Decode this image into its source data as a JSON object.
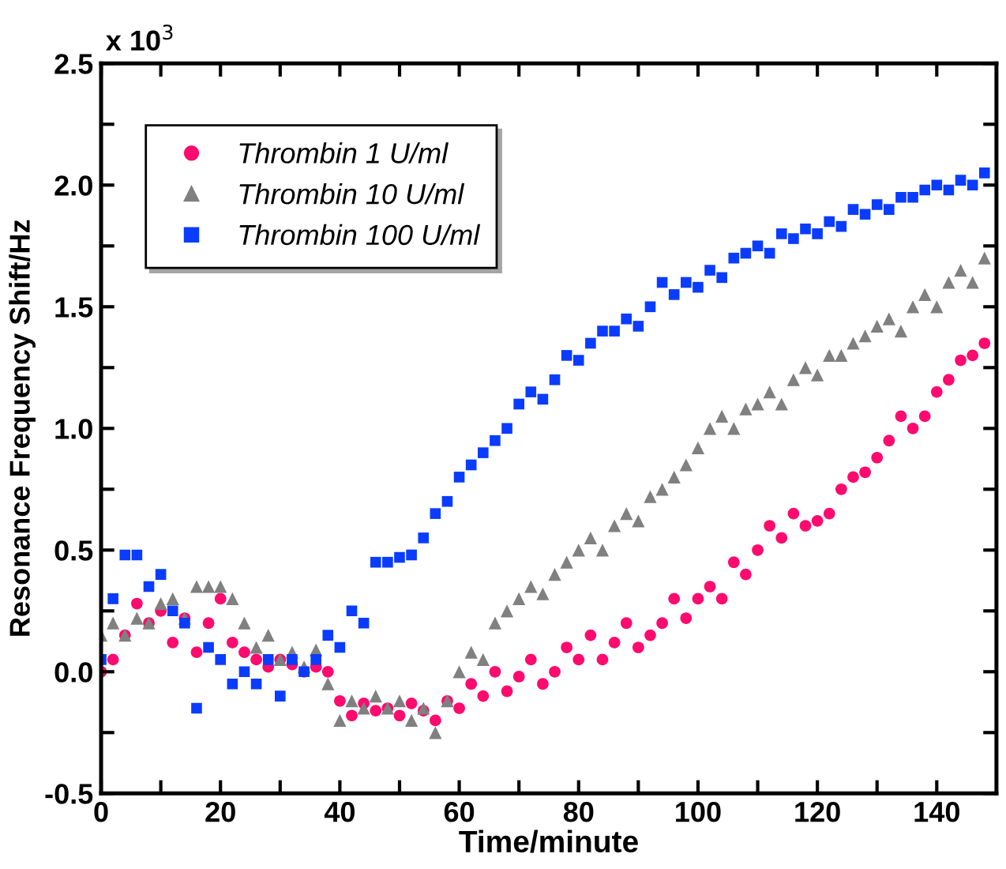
{
  "chart_data": {
    "type": "scatter",
    "xlabel": "Time/minute",
    "ylabel": "Resonance Frequency Shift/Hz",
    "annotations": [
      "x 10$^{3}$"
    ],
    "xlim": [
      0,
      150
    ],
    "ylim": [
      -0.5,
      2.5
    ],
    "xticks": [
      0,
      {
        "value": 10,
        "label": null
      },
      20,
      {
        "value": 30,
        "label": null
      },
      40,
      {
        "value": 50,
        "label": null
      },
      60,
      {
        "value": 70,
        "label": null
      },
      80,
      {
        "value": 90,
        "label": null
      },
      100,
      {
        "value": 110,
        "label": null
      },
      120,
      {
        "value": 130,
        "label": null
      },
      140
    ],
    "yticks": [
      -0.5,
      {
        "value": -0.25,
        "label": null
      },
      {
        "value": 0,
        "label": "0.0"
      },
      {
        "value": 0.25,
        "label": null
      },
      0.5,
      {
        "value": 0.75,
        "label": null
      },
      {
        "value": 1,
        "label": "1.0"
      },
      {
        "value": 1.25,
        "label": null
      },
      1.5,
      {
        "value": 1.75,
        "label": null
      },
      {
        "value": 2,
        "label": "2.0"
      },
      {
        "value": 2.25,
        "label": null
      },
      2.5
    ],
    "grid": false,
    "legend": "top left",
    "x": [
      0,
      2,
      4,
      6,
      8,
      10,
      12,
      14,
      16,
      18,
      20,
      22,
      24,
      26,
      28,
      30,
      32,
      34,
      36,
      38,
      40,
      42,
      44,
      46,
      48,
      50,
      52,
      54,
      56,
      58,
      60,
      62,
      64,
      66,
      68,
      70,
      72,
      74,
      76,
      78,
      80,
      82,
      84,
      86,
      88,
      90,
      92,
      94,
      96,
      98,
      100,
      102,
      104,
      106,
      108,
      110,
      112,
      114,
      116,
      118,
      120,
      122,
      124,
      126,
      128,
      130,
      132,
      134,
      136,
      138,
      140,
      142,
      144,
      146,
      148
    ],
    "series": [
      {
        "name": "Thrombin 1 U/ml",
        "color": "#ff0a6e",
        "marker": "circle",
        "values": [
          0.0,
          0.05,
          0.15,
          0.28,
          0.2,
          0.25,
          0.12,
          0.22,
          0.08,
          0.2,
          0.3,
          0.12,
          0.08,
          0.05,
          0.02,
          0.05,
          0.03,
          0.0,
          0.02,
          0.0,
          -0.12,
          -0.18,
          -0.13,
          -0.16,
          -0.15,
          -0.18,
          -0.13,
          -0.16,
          -0.2,
          -0.12,
          -0.15,
          -0.05,
          -0.1,
          0.0,
          -0.08,
          -0.02,
          0.05,
          -0.05,
          0.0,
          0.1,
          0.05,
          0.15,
          0.05,
          0.12,
          0.2,
          0.1,
          0.15,
          0.2,
          0.3,
          0.22,
          0.3,
          0.35,
          0.3,
          0.45,
          0.4,
          0.5,
          0.6,
          0.55,
          0.65,
          0.6,
          0.62,
          0.65,
          0.75,
          0.8,
          0.82,
          0.88,
          0.95,
          1.05,
          1.0,
          1.05,
          1.15,
          1.2,
          1.28,
          1.3,
          1.35
        ]
      },
      {
        "name": "Thrombin 10 U/ml",
        "color": "#808080",
        "marker": "triangle",
        "values": [
          0.15,
          0.2,
          0.15,
          0.22,
          0.2,
          0.28,
          0.3,
          0.22,
          0.35,
          0.35,
          0.35,
          0.3,
          0.2,
          0.1,
          0.15,
          0.05,
          0.08,
          0.02,
          0.09,
          -0.05,
          -0.2,
          -0.12,
          -0.15,
          -0.1,
          -0.15,
          -0.12,
          -0.2,
          -0.15,
          -0.25,
          -0.12,
          0.0,
          0.08,
          0.05,
          0.2,
          0.25,
          0.3,
          0.35,
          0.32,
          0.4,
          0.45,
          0.5,
          0.55,
          0.5,
          0.6,
          0.65,
          0.62,
          0.72,
          0.75,
          0.8,
          0.85,
          0.92,
          1.0,
          1.05,
          1.0,
          1.08,
          1.1,
          1.15,
          1.1,
          1.2,
          1.25,
          1.22,
          1.3,
          1.3,
          1.35,
          1.38,
          1.42,
          1.45,
          1.4,
          1.5,
          1.55,
          1.5,
          1.6,
          1.65,
          1.6,
          1.7
        ]
      },
      {
        "name": "Thrombin 100 U/ml",
        "color": "#0a3cff",
        "marker": "square",
        "values": [
          0.05,
          0.3,
          0.48,
          0.48,
          0.35,
          0.4,
          0.25,
          0.2,
          -0.15,
          0.1,
          0.05,
          -0.05,
          0.0,
          -0.05,
          0.05,
          -0.1,
          0.05,
          0.0,
          0.05,
          0.15,
          0.1,
          0.25,
          0.2,
          0.45,
          0.45,
          0.47,
          0.48,
          0.55,
          0.65,
          0.7,
          0.8,
          0.85,
          0.9,
          0.95,
          1.0,
          1.1,
          1.15,
          1.12,
          1.2,
          1.3,
          1.28,
          1.35,
          1.4,
          1.4,
          1.45,
          1.42,
          1.5,
          1.6,
          1.55,
          1.6,
          1.58,
          1.65,
          1.62,
          1.7,
          1.72,
          1.75,
          1.72,
          1.8,
          1.78,
          1.82,
          1.8,
          1.85,
          1.83,
          1.9,
          1.88,
          1.92,
          1.9,
          1.95,
          1.95,
          1.98,
          2.0,
          1.98,
          2.02,
          2.0,
          2.05
        ]
      }
    ]
  }
}
